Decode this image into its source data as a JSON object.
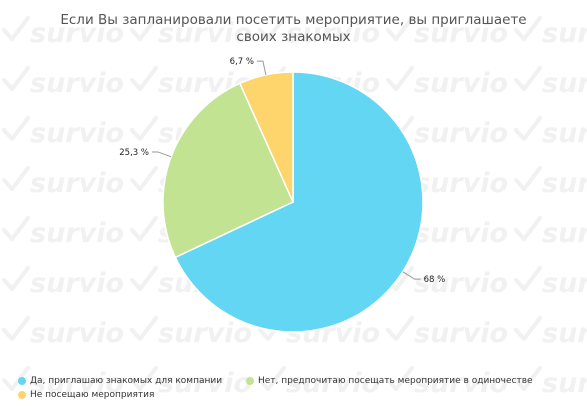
{
  "chart_data": {
    "type": "pie",
    "title": "Если Вы запланировали посетить мероприятие, вы приглашаете своих знакомых",
    "slices": [
      {
        "label": "Да, приглашаю знакомых для компании",
        "value": 68,
        "display": "68 %",
        "color": "#62d6f2"
      },
      {
        "label": "Нет, предпочитаю посещать мероприятие в одиночестве",
        "value": 25.3,
        "display": "25,3 %",
        "color": "#c2e391"
      },
      {
        "label": "Не посещаю мероприятия",
        "value": 6.7,
        "display": "6,7 %",
        "color": "#fdd56c"
      }
    ],
    "legend_position": "bottom"
  },
  "watermark": {
    "text": "survio"
  }
}
